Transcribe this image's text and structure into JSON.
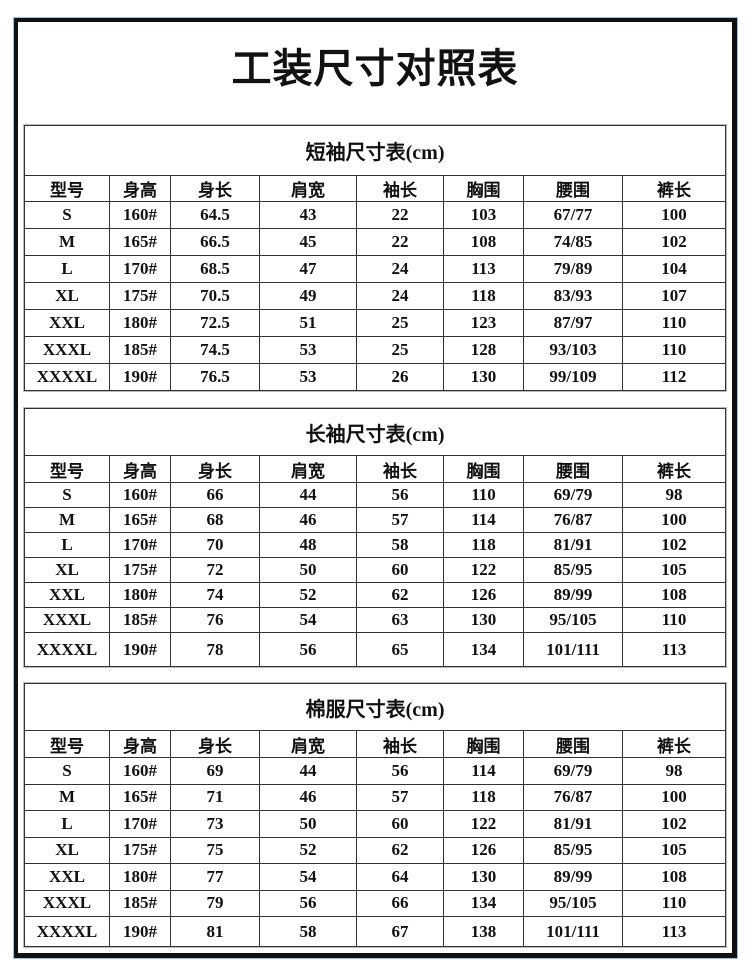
{
  "title": "工装尺寸对照表",
  "headers": [
    "型号",
    "身高",
    "身长",
    "肩宽",
    "袖长",
    "胸围",
    "腰围",
    "裤长"
  ],
  "tables": [
    {
      "title": "短袖尺寸表(cm)",
      "rows": [
        [
          "S",
          "160#",
          "64.5",
          "43",
          "22",
          "103",
          "67/77",
          "100"
        ],
        [
          "M",
          "165#",
          "66.5",
          "45",
          "22",
          "108",
          "74/85",
          "102"
        ],
        [
          "L",
          "170#",
          "68.5",
          "47",
          "24",
          "113",
          "79/89",
          "104"
        ],
        [
          "XL",
          "175#",
          "70.5",
          "49",
          "24",
          "118",
          "83/93",
          "107"
        ],
        [
          "XXL",
          "180#",
          "72.5",
          "51",
          "25",
          "123",
          "87/97",
          "110"
        ],
        [
          "XXXL",
          "185#",
          "74.5",
          "53",
          "25",
          "128",
          "93/103",
          "110"
        ],
        [
          "XXXXL",
          "190#",
          "76.5",
          "53",
          "26",
          "130",
          "99/109",
          "112"
        ]
      ]
    },
    {
      "title": "长袖尺寸表(cm)",
      "rows": [
        [
          "S",
          "160#",
          "66",
          "44",
          "56",
          "110",
          "69/79",
          "98"
        ],
        [
          "M",
          "165#",
          "68",
          "46",
          "57",
          "114",
          "76/87",
          "100"
        ],
        [
          "L",
          "170#",
          "70",
          "48",
          "58",
          "118",
          "81/91",
          "102"
        ],
        [
          "XL",
          "175#",
          "72",
          "50",
          "60",
          "122",
          "85/95",
          "105"
        ],
        [
          "XXL",
          "180#",
          "74",
          "52",
          "62",
          "126",
          "89/99",
          "108"
        ],
        [
          "XXXL",
          "185#",
          "76",
          "54",
          "63",
          "130",
          "95/105",
          "110"
        ],
        [
          "XXXXL",
          "190#",
          "78",
          "56",
          "65",
          "134",
          "101/111",
          "113"
        ]
      ]
    },
    {
      "title": "棉服尺寸表(cm)",
      "rows": [
        [
          "S",
          "160#",
          "69",
          "44",
          "56",
          "114",
          "69/79",
          "98"
        ],
        [
          "M",
          "165#",
          "71",
          "46",
          "57",
          "118",
          "76/87",
          "100"
        ],
        [
          "L",
          "170#",
          "73",
          "50",
          "60",
          "122",
          "81/91",
          "102"
        ],
        [
          "XL",
          "175#",
          "75",
          "52",
          "62",
          "126",
          "85/95",
          "105"
        ],
        [
          "XXL",
          "180#",
          "77",
          "54",
          "64",
          "130",
          "89/99",
          "108"
        ],
        [
          "XXXL",
          "185#",
          "79",
          "56",
          "66",
          "134",
          "95/105",
          "110"
        ],
        [
          "XXXXL",
          "190#",
          "81",
          "58",
          "67",
          "138",
          "101/111",
          "113"
        ]
      ]
    }
  ]
}
